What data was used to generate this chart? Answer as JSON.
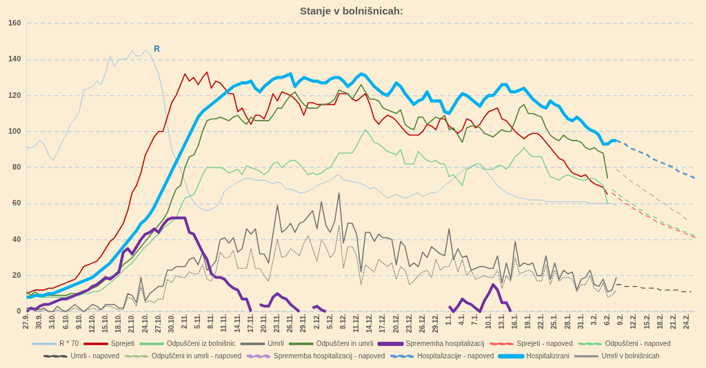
{
  "chart_data": {
    "type": "line",
    "title": "Stanje v bolnišnicah:",
    "categories": [
      "27.9.",
      null,
      null,
      "30.9.",
      null,
      null,
      "3.10.",
      null,
      null,
      "6.10.",
      null,
      null,
      "9.10.",
      null,
      null,
      "12.10.",
      null,
      null,
      "15.10.",
      null,
      null,
      "18.10.",
      null,
      null,
      "21.10.",
      null,
      null,
      "24.10.",
      null,
      null,
      "27.10.",
      null,
      null,
      "30.10.",
      null,
      null,
      "2.11.",
      null,
      null,
      "5.11.",
      null,
      null,
      "8.11.",
      null,
      null,
      "11.11.",
      null,
      null,
      "14.11.",
      null,
      null,
      "17.11.",
      null,
      null,
      "20.11.",
      null,
      null,
      "23.11.",
      null,
      null,
      "26.11.",
      null,
      null,
      "29.11.",
      null,
      null,
      "2.12.",
      null,
      null,
      "5.12.",
      null,
      null,
      "8.12.",
      null,
      null,
      "11.12.",
      null,
      null,
      "14.12.",
      null,
      null,
      "17.12.",
      null,
      null,
      "20.12.",
      null,
      null,
      "23.12.",
      null,
      null,
      "26.12.",
      null,
      null,
      "29.12.",
      null,
      null,
      "1.1.",
      null,
      null,
      "4.1.",
      null,
      null,
      "7.1.",
      null,
      null,
      "10.1.",
      null,
      null,
      "13.1.",
      null,
      null,
      "16.1.",
      null,
      null,
      "19.1.",
      null,
      null,
      "22.1.",
      null,
      null,
      "25.1.",
      null,
      null,
      "28.1.",
      null,
      null,
      "31.1.",
      null,
      null,
      "3.2.",
      null,
      null,
      "6.2.",
      null,
      null,
      "9.2.",
      null,
      null,
      "12.2.",
      null,
      null,
      "15.2.",
      null,
      null,
      "18.2.",
      null,
      null,
      "21.2.",
      null,
      null,
      "24.2.",
      null,
      null
    ],
    "ylim": [
      0,
      160
    ],
    "yticks": [
      0,
      20,
      40,
      60,
      80,
      100,
      120,
      140,
      160
    ],
    "grid": "y",
    "legend": "bottom",
    "marker": "none",
    "annotations": [
      "R"
    ],
    "series": [
      {
        "name": "R * 70",
        "color": "#9dc3e6",
        "line_style": "solid",
        "values": [
          91,
          91,
          92,
          95,
          93,
          87,
          84,
          88,
          94,
          98,
          104,
          107,
          111,
          123,
          124,
          125,
          128,
          126,
          133,
          142,
          136,
          140,
          140,
          141,
          145,
          142,
          142,
          145,
          143,
          138,
          132,
          121,
          104,
          90,
          84,
          79,
          72,
          65,
          61,
          58,
          57,
          56,
          57,
          58,
          61,
          67,
          69,
          70,
          72,
          73,
          74,
          74,
          73,
          73,
          73,
          72,
          71,
          72,
          71,
          68,
          68,
          67,
          66,
          66,
          67,
          68,
          70,
          71,
          72,
          73,
          75,
          76,
          73,
          73,
          72,
          72,
          71,
          70,
          68,
          69,
          67,
          65,
          63,
          64,
          65,
          64,
          63,
          64,
          65,
          66,
          64,
          65,
          66,
          66,
          68,
          70,
          72,
          74,
          76,
          78,
          80,
          81,
          81,
          80,
          79,
          76,
          73,
          70,
          68,
          66,
          65,
          64,
          63,
          63,
          62,
          62,
          62,
          62,
          61,
          61,
          61,
          61,
          61,
          61,
          61,
          61,
          61,
          61,
          60,
          60,
          60,
          60,
          60,
          60,
          59,
          null,
          null,
          null,
          null,
          null,
          null,
          null,
          null,
          null,
          null,
          null,
          null,
          null,
          null,
          null,
          null,
          null,
          null
        ]
      },
      {
        "name": "Sprejeti",
        "color": "#c00000",
        "line_style": "solid",
        "values": [
          10,
          11,
          12,
          12,
          12,
          13,
          13,
          14,
          15,
          16,
          17,
          18,
          21,
          25,
          26,
          27,
          28,
          31,
          35,
          39,
          41,
          45,
          49,
          56,
          66,
          70,
          77,
          87,
          92,
          97,
          100,
          100,
          108,
          116,
          120,
          126,
          132,
          128,
          130,
          126,
          130,
          133,
          124,
          128,
          127,
          124,
          121,
          121,
          111,
          113,
          108,
          104,
          109,
          109,
          107,
          113,
          121,
          117,
          122,
          121,
          120,
          118,
          115,
          109,
          116,
          116,
          115,
          115,
          115,
          115,
          115,
          121,
          121,
          121,
          118,
          117,
          119,
          121,
          115,
          107,
          104,
          107,
          109,
          108,
          106,
          103,
          100,
          98,
          98,
          98,
          100,
          104,
          103,
          101,
          107,
          107,
          103,
          101,
          99,
          101,
          107,
          106,
          102,
          104,
          108,
          111,
          112,
          113,
          107,
          106,
          103,
          100,
          98,
          96,
          98,
          99,
          99,
          97,
          94,
          91,
          88,
          85,
          84,
          80,
          77,
          76,
          75,
          76,
          73,
          71,
          70,
          69,
          65,
          null,
          null,
          null,
          null,
          null,
          null,
          null,
          null,
          null,
          null,
          null,
          null,
          null,
          null,
          null,
          null,
          null,
          null,
          null,
          null
        ]
      },
      {
        "name": "Odpuščeni iz bolnišnic",
        "color": "#6fcf87",
        "line_style": "solid",
        "values": [
          9,
          8,
          9,
          8,
          8,
          8,
          8,
          8,
          8,
          8,
          9,
          9,
          9,
          10,
          10,
          11,
          11,
          12,
          14,
          16,
          18,
          20,
          23,
          25,
          27,
          30,
          33,
          36,
          38,
          41,
          43,
          46,
          48,
          50,
          52,
          58,
          63,
          64,
          65,
          70,
          76,
          80,
          80,
          80,
          80,
          79,
          77,
          78,
          79,
          76,
          81,
          80,
          79,
          78,
          76,
          78,
          82,
          83,
          80,
          82,
          84,
          84,
          82,
          79,
          76,
          77,
          76,
          77,
          79,
          80,
          84,
          88,
          88,
          88,
          88,
          92,
          97,
          101,
          98,
          94,
          93,
          91,
          89,
          88,
          87,
          90,
          82,
          82,
          82,
          89,
          86,
          84,
          83,
          84,
          82,
          82,
          75,
          76,
          73,
          70,
          79,
          80,
          82,
          82,
          79,
          79,
          79,
          81,
          81,
          79,
          82,
          86,
          88,
          91,
          88,
          86,
          86,
          86,
          80,
          75,
          74,
          73,
          75,
          76,
          75,
          74,
          73,
          73,
          74,
          74,
          72,
          70,
          60,
          null,
          null,
          null,
          null,
          null,
          null,
          null,
          null,
          null,
          null,
          null,
          null,
          null,
          null,
          null,
          null,
          null,
          null,
          null,
          null
        ]
      },
      {
        "name": "Umrli",
        "color": "#707070",
        "line_style": "solid",
        "values": [
          2,
          2,
          2,
          1,
          2,
          0,
          0,
          3,
          1,
          0,
          2,
          4,
          2,
          0,
          2,
          4,
          3,
          1,
          4,
          4,
          4,
          2,
          2,
          10,
          9,
          5,
          19,
          6,
          10,
          12,
          14,
          14,
          23,
          23,
          25,
          25,
          25,
          29,
          30,
          26,
          33,
          23,
          25,
          28,
          40,
          41,
          38,
          41,
          33,
          35,
          46,
          43,
          46,
          32,
          32,
          27,
          43,
          59,
          44,
          46,
          49,
          44,
          49,
          50,
          53,
          56,
          46,
          61,
          48,
          44,
          50,
          66,
          38,
          49,
          49,
          43,
          22,
          44,
          44,
          39,
          43,
          41,
          41,
          40,
          26,
          39,
          36,
          25,
          27,
          25,
          33,
          30,
          36,
          34,
          32,
          31,
          46,
          29,
          35,
          30,
          31,
          23,
          24,
          25,
          25,
          24,
          24,
          31,
          16,
          27,
          18,
          39,
          25,
          27,
          26,
          27,
          20,
          20,
          31,
          18,
          27,
          18,
          23,
          21,
          22,
          12,
          18,
          19,
          23,
          15,
          14,
          18,
          11,
          12,
          19,
          null,
          null,
          null,
          null,
          null,
          null,
          null,
          null,
          null,
          null,
          null,
          null,
          null,
          null,
          null,
          null,
          null,
          null
        ]
      },
      {
        "name": "Odpuščeni in umrli",
        "color": "#548235",
        "line_style": "solid",
        "values": [
          11,
          9,
          11,
          9,
          9,
          9,
          9,
          9,
          9,
          9,
          10,
          10,
          10,
          11,
          12,
          13,
          14,
          16,
          18,
          19,
          20,
          23,
          26,
          28,
          30,
          33,
          36,
          39,
          42,
          45,
          48,
          51,
          55,
          62,
          68,
          70,
          80,
          86,
          87,
          92,
          100,
          106,
          107,
          107,
          108,
          107,
          106,
          108,
          109,
          106,
          104,
          108,
          106,
          106,
          106,
          106,
          109,
          113,
          113,
          117,
          120,
          122,
          118,
          115,
          113,
          113,
          113,
          115,
          115,
          116,
          118,
          123,
          122,
          121,
          118,
          122,
          126,
          122,
          118,
          118,
          117,
          113,
          112,
          111,
          110,
          112,
          104,
          102,
          101,
          108,
          108,
          104,
          106,
          108,
          107,
          109,
          101,
          102,
          98,
          94,
          102,
          103,
          103,
          102,
          99,
          98,
          97,
          99,
          101,
          100,
          100,
          106,
          113,
          115,
          110,
          110,
          109,
          108,
          102,
          98,
          96,
          95,
          98,
          96,
          95,
          95,
          94,
          91,
          90,
          91,
          89,
          88,
          74,
          null,
          null,
          null,
          null,
          null,
          null,
          null,
          null,
          null,
          null,
          null,
          null,
          null,
          null,
          null,
          null,
          null,
          null,
          null,
          null
        ]
      },
      {
        "name": "Sprememba hospitalizacij",
        "color": "#7030a0",
        "line_style": "solid",
        "values": [
          0,
          2,
          1,
          3,
          4,
          4,
          5,
          6,
          7,
          7,
          8,
          9,
          10,
          11,
          12,
          14,
          15,
          17,
          19,
          18,
          20,
          22,
          33,
          35,
          32,
          36,
          40,
          43,
          44,
          46,
          44,
          48,
          51,
          52,
          52,
          52,
          52,
          44,
          43,
          38,
          33,
          29,
          21,
          19,
          19,
          18,
          15,
          13,
          12,
          7,
          7,
          0,
          null,
          4,
          3,
          3,
          8,
          10,
          8,
          7,
          4,
          2,
          0,
          null,
          null,
          2,
          3,
          1,
          0,
          null,
          null,
          null,
          null,
          null,
          null,
          null,
          null,
          null,
          null,
          null,
          null,
          null,
          null,
          null,
          null,
          null,
          null,
          null,
          null,
          null,
          null,
          null,
          null,
          null,
          null,
          null,
          3,
          0,
          3,
          7,
          5,
          4,
          2,
          0,
          6,
          10,
          15,
          12,
          5,
          5,
          0,
          null,
          null,
          null,
          null,
          null,
          null,
          null,
          null,
          null,
          null,
          null,
          null,
          null,
          null,
          null,
          null,
          null,
          null,
          null,
          null,
          null,
          null,
          null,
          null,
          null,
          null,
          null,
          null,
          null,
          null,
          null,
          null,
          null,
          null,
          null,
          null,
          null,
          null,
          null,
          null,
          null,
          null
        ]
      },
      {
        "name": "Sprejeti - napoved",
        "color": "#ff5b5b",
        "line_style": "dashed",
        "values": [
          null,
          null,
          null,
          null,
          null,
          null,
          null,
          null,
          null,
          null,
          null,
          null,
          null,
          null,
          null,
          null,
          null,
          null,
          null,
          null,
          null,
          null,
          null,
          null,
          null,
          null,
          null,
          null,
          null,
          null,
          null,
          null,
          null,
          null,
          null,
          null,
          null,
          null,
          null,
          null,
          null,
          null,
          null,
          null,
          null,
          null,
          null,
          null,
          null,
          null,
          null,
          null,
          null,
          null,
          null,
          null,
          null,
          null,
          null,
          null,
          null,
          null,
          null,
          null,
          null,
          null,
          null,
          null,
          null,
          null,
          null,
          null,
          null,
          null,
          null,
          null,
          null,
          null,
          null,
          null,
          null,
          null,
          null,
          null,
          null,
          null,
          null,
          null,
          null,
          null,
          null,
          null,
          null,
          null,
          null,
          null,
          null,
          null,
          null,
          null,
          null,
          null,
          null,
          null,
          null,
          null,
          null,
          null,
          null,
          null,
          null,
          null,
          null,
          null,
          null,
          null,
          null,
          null,
          null,
          null,
          null,
          null,
          null,
          null,
          null,
          null,
          null,
          null,
          null,
          null,
          null,
          null,
          null,
          66,
          64,
          62,
          60,
          59,
          57,
          56,
          54,
          53,
          52,
          50,
          49,
          48,
          47,
          46,
          45,
          44,
          43,
          42,
          41
        ]
      },
      {
        "name": "Odpuščeni - napoved",
        "color": "#6fd585",
        "line_style": "dashed",
        "values": [
          null,
          null,
          null,
          null,
          null,
          null,
          null,
          null,
          null,
          null,
          null,
          null,
          null,
          null,
          null,
          null,
          null,
          null,
          null,
          null,
          null,
          null,
          null,
          null,
          null,
          null,
          null,
          null,
          null,
          null,
          null,
          null,
          null,
          null,
          null,
          null,
          null,
          null,
          null,
          null,
          null,
          null,
          null,
          null,
          null,
          null,
          null,
          null,
          null,
          null,
          null,
          null,
          null,
          null,
          null,
          null,
          null,
          null,
          null,
          null,
          null,
          null,
          null,
          null,
          null,
          null,
          null,
          null,
          null,
          null,
          null,
          null,
          null,
          null,
          null,
          null,
          null,
          null,
          null,
          null,
          null,
          null,
          null,
          null,
          null,
          null,
          null,
          null,
          null,
          null,
          null,
          null,
          null,
          null,
          null,
          null,
          null,
          null,
          null,
          null,
          null,
          null,
          null,
          null,
          null,
          null,
          null,
          null,
          null,
          null,
          null,
          null,
          null,
          null,
          null,
          null,
          null,
          null,
          null,
          null,
          null,
          null,
          null,
          null,
          null,
          null,
          null,
          null,
          null,
          null,
          null,
          null,
          null,
          68,
          66,
          64,
          62,
          61,
          59,
          57,
          56,
          54,
          53,
          52,
          50,
          49,
          48,
          47,
          46,
          45,
          44,
          43,
          42
        ]
      },
      {
        "name": "Umrli - napoved",
        "color": "#505050",
        "line_style": "dashed",
        "values": [
          null,
          null,
          null,
          null,
          null,
          null,
          null,
          null,
          null,
          null,
          null,
          null,
          null,
          null,
          null,
          null,
          null,
          null,
          null,
          null,
          null,
          null,
          null,
          null,
          null,
          null,
          null,
          null,
          null,
          null,
          null,
          null,
          null,
          null,
          null,
          null,
          null,
          null,
          null,
          null,
          null,
          null,
          null,
          null,
          null,
          null,
          null,
          null,
          null,
          null,
          null,
          null,
          null,
          null,
          null,
          null,
          null,
          null,
          null,
          null,
          null,
          null,
          null,
          null,
          null,
          null,
          null,
          null,
          null,
          null,
          null,
          null,
          null,
          null,
          null,
          null,
          null,
          null,
          null,
          null,
          null,
          null,
          null,
          null,
          null,
          null,
          null,
          null,
          null,
          null,
          null,
          null,
          null,
          null,
          null,
          null,
          null,
          null,
          null,
          null,
          null,
          null,
          null,
          null,
          null,
          null,
          null,
          null,
          null,
          null,
          null,
          null,
          null,
          null,
          null,
          null,
          null,
          null,
          null,
          null,
          null,
          null,
          null,
          null,
          null,
          null,
          null,
          null,
          null,
          null,
          null,
          null,
          null,
          null,
          15,
          15,
          14,
          14,
          14,
          14,
          13,
          13,
          13,
          13,
          12,
          12,
          12,
          12,
          12,
          11,
          11,
          11,
          null
        ]
      },
      {
        "name": "Odpuščeni in umrli - napoved",
        "color": "#a9bf8a",
        "line_style": "dashed",
        "values": [
          null,
          null,
          null,
          null,
          null,
          null,
          null,
          null,
          null,
          null,
          null,
          null,
          null,
          null,
          null,
          null,
          null,
          null,
          null,
          null,
          null,
          null,
          null,
          null,
          null,
          null,
          null,
          null,
          null,
          null,
          null,
          null,
          null,
          null,
          null,
          null,
          null,
          null,
          null,
          null,
          null,
          null,
          null,
          null,
          null,
          null,
          null,
          null,
          null,
          null,
          null,
          null,
          null,
          null,
          null,
          null,
          null,
          null,
          null,
          null,
          null,
          null,
          null,
          null,
          null,
          null,
          null,
          null,
          null,
          null,
          null,
          null,
          null,
          null,
          null,
          null,
          null,
          null,
          null,
          null,
          null,
          null,
          null,
          null,
          null,
          null,
          null,
          null,
          null,
          null,
          null,
          null,
          null,
          null,
          null,
          null,
          null,
          null,
          null,
          null,
          null,
          null,
          null,
          null,
          null,
          null,
          null,
          null,
          null,
          null,
          null,
          null,
          null,
          null,
          null,
          null,
          null,
          null,
          null,
          null,
          null,
          null,
          null,
          null,
          null,
          null,
          null,
          null,
          null,
          null,
          null,
          null,
          null,
          null,
          79,
          77,
          75,
          73,
          71,
          70,
          68,
          66,
          65,
          63,
          61,
          60,
          58,
          56,
          55,
          53,
          51,
          null,
          null
        ]
      },
      {
        "name": "Sprememba hospitalizacij - napoved",
        "color": "#b38fd3",
        "line_style": "dashed",
        "values": [
          null,
          null,
          null,
          null,
          null,
          null,
          null,
          null,
          null,
          null,
          null,
          null,
          null,
          null,
          null,
          null,
          null,
          null,
          null,
          null,
          null,
          null,
          null,
          null,
          null,
          null,
          null,
          null,
          null,
          null,
          null,
          null,
          null,
          null,
          null,
          null,
          null,
          null,
          null,
          null,
          null,
          null,
          null,
          null,
          null,
          null,
          null,
          null,
          null,
          null,
          null,
          null,
          null,
          null,
          null,
          null,
          null,
          null,
          null,
          null,
          null,
          null,
          null,
          null,
          null,
          null,
          null,
          null,
          null,
          null,
          null,
          null,
          null,
          null,
          null,
          null,
          null,
          null,
          null,
          null,
          null,
          null,
          null,
          null,
          null,
          null,
          null,
          null,
          null,
          null,
          null,
          null,
          null,
          null,
          null,
          null,
          null,
          null,
          null,
          null,
          null,
          null,
          null,
          null,
          null,
          null,
          null,
          null,
          null,
          null,
          null,
          null,
          null,
          null,
          null,
          null,
          null,
          null,
          null,
          null,
          null,
          null,
          null,
          null,
          null,
          null,
          null,
          null,
          null,
          null,
          null,
          null,
          null,
          null,
          null,
          null,
          null,
          null,
          null,
          null,
          null,
          null,
          null,
          null,
          null,
          null,
          null,
          null,
          null,
          null,
          null,
          null,
          null
        ]
      },
      {
        "name": "Hospitalizacije - napoved",
        "color": "#5b9bd5",
        "line_style": "dashed",
        "values": [
          null,
          null,
          null,
          null,
          null,
          null,
          null,
          null,
          null,
          null,
          null,
          null,
          null,
          null,
          null,
          null,
          null,
          null,
          null,
          null,
          null,
          null,
          null,
          null,
          null,
          null,
          null,
          null,
          null,
          null,
          null,
          null,
          null,
          null,
          null,
          null,
          null,
          null,
          null,
          null,
          null,
          null,
          null,
          null,
          null,
          null,
          null,
          null,
          null,
          null,
          null,
          null,
          null,
          null,
          null,
          null,
          null,
          null,
          null,
          null,
          null,
          null,
          null,
          null,
          null,
          null,
          null,
          null,
          null,
          null,
          null,
          null,
          null,
          null,
          null,
          null,
          null,
          null,
          null,
          null,
          null,
          null,
          null,
          null,
          null,
          null,
          null,
          null,
          null,
          null,
          null,
          null,
          null,
          null,
          null,
          null,
          null,
          null,
          null,
          null,
          null,
          null,
          null,
          null,
          null,
          null,
          null,
          null,
          null,
          null,
          null,
          null,
          null,
          null,
          null,
          null,
          null,
          null,
          null,
          null,
          null,
          null,
          null,
          null,
          null,
          null,
          null,
          null,
          null,
          null,
          null,
          null,
          null,
          null,
          95,
          94,
          93,
          91,
          90,
          89,
          88,
          87,
          85,
          84,
          83,
          82,
          81,
          80,
          78,
          77,
          76,
          75,
          74
        ]
      },
      {
        "name": "Hospitalizirani",
        "color": "#00b0f0",
        "line_style": "solid",
        "values": [
          8,
          8,
          9,
          9,
          9,
          10,
          10,
          11,
          12,
          13,
          14,
          15,
          16,
          17,
          18,
          19,
          21,
          23,
          25,
          27,
          30,
          33,
          36,
          39,
          42,
          45,
          49,
          51,
          54,
          58,
          63,
          68,
          73,
          78,
          83,
          88,
          93,
          98,
          103,
          108,
          111,
          113,
          115,
          117,
          119,
          121,
          123,
          125,
          126,
          127,
          127,
          128,
          124,
          122,
          125,
          127,
          129,
          130,
          130,
          131,
          132,
          125,
          128,
          130,
          129,
          128,
          128,
          127,
          127,
          129,
          130,
          130,
          128,
          125,
          127,
          130,
          132,
          131,
          128,
          125,
          123,
          121,
          120,
          123,
          127,
          125,
          121,
          118,
          115,
          117,
          118,
          122,
          117,
          117,
          117,
          111,
          110,
          114,
          118,
          121,
          120,
          118,
          116,
          114,
          118,
          120,
          120,
          123,
          126,
          126,
          122,
          122,
          123,
          124,
          121,
          118,
          116,
          114,
          113,
          117,
          115,
          114,
          110,
          107,
          106,
          108,
          106,
          103,
          101,
          100,
          98,
          93,
          93,
          95,
          95,
          null,
          null,
          null,
          null,
          null,
          null,
          null,
          null,
          null,
          null,
          null,
          null,
          null,
          null,
          null,
          null,
          null,
          null
        ]
      },
      {
        "name": "Umrli v bolnišnicah",
        "color": "#8c8c8c",
        "line_style": "dotted",
        "values": [
          1,
          1,
          1,
          0,
          1,
          0,
          0,
          1,
          0,
          0,
          1,
          2,
          1,
          0,
          1,
          2,
          1,
          1,
          3,
          3,
          2,
          1,
          1,
          8,
          7,
          3,
          14,
          5,
          6,
          5,
          7,
          7,
          18,
          16,
          20,
          19,
          19,
          22,
          21,
          21,
          26,
          18,
          17,
          22,
          33,
          30,
          30,
          34,
          24,
          24,
          24,
          35,
          24,
          24,
          20,
          17,
          28,
          40,
          30,
          31,
          35,
          33,
          31,
          38,
          42,
          35,
          28,
          40,
          36,
          30,
          33,
          48,
          24,
          36,
          36,
          31,
          15,
          26,
          24,
          22,
          29,
          27,
          25,
          27,
          18,
          25,
          23,
          15,
          17,
          20,
          22,
          23,
          19,
          29,
          23,
          25,
          25,
          31,
          22,
          29,
          20,
          23,
          18,
          19,
          20,
          19,
          19,
          23,
          13,
          20,
          17,
          30,
          21,
          22,
          23,
          22,
          17,
          17,
          26,
          15,
          23,
          17,
          19,
          19,
          18,
          11,
          15,
          15,
          20,
          13,
          11,
          16,
          8,
          9,
          12,
          null,
          null,
          null,
          null,
          null,
          null,
          null,
          null,
          null,
          null,
          null,
          null,
          null,
          null,
          null,
          null,
          null,
          null
        ]
      }
    ]
  }
}
